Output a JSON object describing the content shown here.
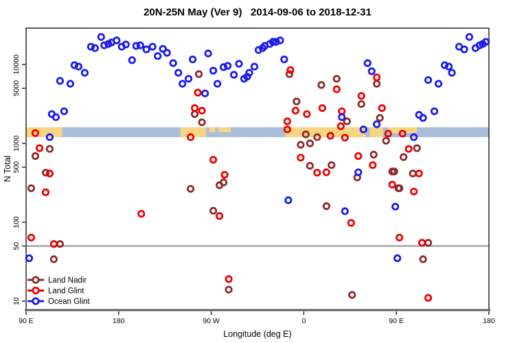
{
  "header": {
    "title": "20N-25N May (Ver 9)   2014-09-06 to 2018-12-31"
  },
  "chart_data": {
    "type": "scatter",
    "title": "20N-25N May (Ver 9)   2014-09-06 to 2018-12-31",
    "xlabel": "Longitude (deg E)",
    "ylabel": "N Total",
    "y_scale": "log10",
    "ylim": [
      8,
      29000
    ],
    "grid": false,
    "reference_line_y": 50,
    "x_axis": {
      "description": "longitude axis starting at 90E and wrapping eastward 450 degrees",
      "span_deg": 450,
      "ticks": [
        {
          "offset": 0,
          "label": "90 E"
        },
        {
          "offset": 90,
          "label": "180"
        },
        {
          "offset": 180,
          "label": "90 W"
        },
        {
          "offset": 270,
          "label": "0"
        },
        {
          "offset": 360,
          "label": "90 E"
        },
        {
          "offset": 450,
          "label": "180"
        }
      ]
    },
    "y_ticks": [
      {
        "v": 10,
        "label": "10"
      },
      {
        "v": 50,
        "label": "50"
      },
      {
        "v": 100,
        "label": "100"
      },
      {
        "v": 500,
        "label": "500"
      },
      {
        "v": 1000,
        "label": "1000"
      },
      {
        "v": 5000,
        "label": "5000"
      },
      {
        "v": 10000,
        "label": "10000"
      }
    ],
    "map_strip": {
      "description": "world-map latitude band 20N-25N drawn across plot",
      "y_range": [
        1200,
        1600
      ],
      "ocean_color": "#a9bedb",
      "land_color": "#f8d583",
      "land_segments": [
        {
          "f": 0,
          "t": 35,
          "h": 1
        },
        {
          "f": 150,
          "t": 175,
          "h": 1
        },
        {
          "f": 178,
          "t": 184,
          "h": 0.5
        },
        {
          "f": 187,
          "t": 199,
          "h": 0.5
        },
        {
          "f": 252,
          "t": 330,
          "h": 1
        },
        {
          "f": 334,
          "t": 347,
          "h": 1
        },
        {
          "f": 352,
          "t": 380,
          "h": 0.6
        }
      ]
    },
    "legend": {
      "position": "bottom-left",
      "items": [
        "Land Nadir",
        "Land Glint",
        "Ocean Glint"
      ]
    },
    "series": [
      {
        "name": "Land Nadir",
        "color": "#8b2a2a",
        "points": [
          [
            23,
            850
          ],
          [
            9,
            690
          ],
          [
            19,
            425
          ],
          [
            5,
            270
          ],
          [
            33,
            53
          ],
          [
            27,
            34
          ],
          [
            168,
            7550
          ],
          [
            164,
            2350
          ],
          [
            171,
            1850
          ],
          [
            182,
            140
          ],
          [
            192,
            320
          ],
          [
            188,
            295
          ],
          [
            160,
            265
          ],
          [
            197,
            14
          ],
          [
            256,
            7550
          ],
          [
            287,
            5500
          ],
          [
            302,
            6600
          ],
          [
            263,
            3400
          ],
          [
            272,
            1300
          ],
          [
            283,
            1200
          ],
          [
            267,
            960
          ],
          [
            276,
            1000
          ],
          [
            341,
            5700
          ],
          [
            326,
            3150
          ],
          [
            312,
            1900
          ],
          [
            344,
            2100
          ],
          [
            350,
            1080
          ],
          [
            356,
            440
          ],
          [
            362,
            270
          ],
          [
            338,
            720
          ],
          [
            276,
            520
          ],
          [
            297,
            530
          ],
          [
            322,
            370
          ],
          [
            317,
            12
          ],
          [
            292,
            160
          ],
          [
            380,
            870
          ],
          [
            367,
            670
          ],
          [
            358,
            440
          ],
          [
            376,
            415
          ],
          [
            363,
            270
          ],
          [
            391,
            55
          ],
          [
            386,
            34
          ]
        ]
      },
      {
        "name": "Land Glint",
        "color": "#ee0000",
        "points": [
          [
            9,
            1350
          ],
          [
            13,
            870
          ],
          [
            23,
            415
          ],
          [
            19,
            240
          ],
          [
            5,
            64
          ],
          [
            27,
            53
          ],
          [
            112,
            128
          ],
          [
            160,
            1200
          ],
          [
            167,
            4400
          ],
          [
            164,
            2800
          ],
          [
            171,
            2600
          ],
          [
            182,
            620
          ],
          [
            193,
            400
          ],
          [
            188,
            120
          ],
          [
            197,
            19
          ],
          [
            257,
            8500
          ],
          [
            262,
            2600
          ],
          [
            254,
            1900
          ],
          [
            254,
            1500
          ],
          [
            288,
            2800
          ],
          [
            273,
            2350
          ],
          [
            296,
            1250
          ],
          [
            310,
            1180
          ],
          [
            302,
            4850
          ],
          [
            326,
            4000
          ],
          [
            341,
            6850
          ],
          [
            346,
            2800
          ],
          [
            307,
            2550
          ],
          [
            306,
            1650
          ],
          [
            267,
            660
          ],
          [
            283,
            425
          ],
          [
            292,
            430
          ],
          [
            323,
            690
          ],
          [
            337,
            530
          ],
          [
            316,
            98
          ],
          [
            352,
            1330
          ],
          [
            366,
            1330
          ],
          [
            372,
            850
          ],
          [
            382,
            415
          ],
          [
            377,
            245
          ],
          [
            363,
            64
          ],
          [
            385,
            55
          ],
          [
            391,
            11
          ],
          [
            356,
            300
          ]
        ]
      },
      {
        "name": "Ocean Glint",
        "color": "#1a1aef",
        "points": [
          [
            73,
            22300
          ],
          [
            63,
            16800
          ],
          [
            67,
            16150
          ],
          [
            76,
            17500
          ],
          [
            80,
            18200
          ],
          [
            83,
            19000
          ],
          [
            88,
            20200
          ],
          [
            93,
            16800
          ],
          [
            97,
            17900
          ],
          [
            107,
            17200
          ],
          [
            111,
            17500
          ],
          [
            103,
            11350
          ],
          [
            47,
            9800
          ],
          [
            51,
            9400
          ],
          [
            57,
            7850
          ],
          [
            33,
            6200
          ],
          [
            43,
            5700
          ],
          [
            25,
            2350
          ],
          [
            29,
            2150
          ],
          [
            37,
            2550
          ],
          [
            23,
            1200
          ],
          [
            3,
            35
          ],
          [
            117,
            15550
          ],
          [
            123,
            16800
          ],
          [
            128,
            12800
          ],
          [
            133,
            15800
          ],
          [
            137,
            14050
          ],
          [
            143,
            10400
          ],
          [
            148,
            7850
          ],
          [
            152,
            5700
          ],
          [
            158,
            6600
          ],
          [
            162,
            11600
          ],
          [
            174,
            4300
          ],
          [
            177,
            13800
          ],
          [
            182,
            8350
          ],
          [
            186,
            5700
          ],
          [
            192,
            9250
          ],
          [
            196,
            9600
          ],
          [
            202,
            7400
          ],
          [
            207,
            10200
          ],
          [
            212,
            6600
          ],
          [
            215,
            7000
          ],
          [
            217,
            7850
          ],
          [
            222,
            9400
          ],
          [
            226,
            15250
          ],
          [
            230,
            16150
          ],
          [
            232,
            17200
          ],
          [
            237,
            18200
          ],
          [
            240,
            19350
          ],
          [
            243,
            19350
          ],
          [
            247,
            20200
          ],
          [
            251,
            11600
          ],
          [
            332,
            10400
          ],
          [
            336,
            8200
          ],
          [
            307,
            2150
          ],
          [
            341,
            1750
          ],
          [
            328,
            1500
          ],
          [
            255,
            190
          ],
          [
            310,
            138
          ],
          [
            323,
            430
          ],
          [
            359,
            158
          ],
          [
            361,
            35
          ],
          [
            377,
            1200
          ],
          [
            382,
            2300
          ],
          [
            386,
            2100
          ],
          [
            397,
            2550
          ],
          [
            391,
            6350
          ],
          [
            401,
            5700
          ],
          [
            407,
            9800
          ],
          [
            411,
            9400
          ],
          [
            414,
            7850
          ],
          [
            421,
            16800
          ],
          [
            426,
            15550
          ],
          [
            431,
            22300
          ],
          [
            437,
            16150
          ],
          [
            441,
            17500
          ],
          [
            444,
            18200
          ],
          [
            447,
            19350
          ]
        ]
      }
    ]
  }
}
